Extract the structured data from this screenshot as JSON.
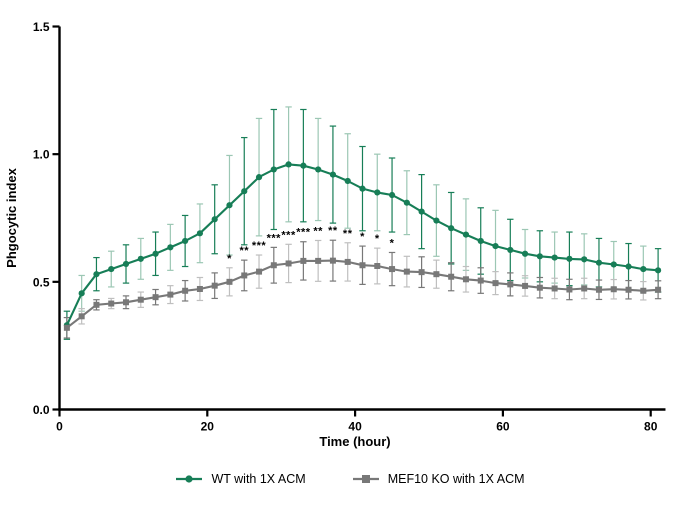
{
  "chart_data": {
    "type": "line",
    "title": "",
    "xlabel": "Time (hour)",
    "ylabel": "Phgocytic index",
    "xlim": [
      0,
      82
    ],
    "ylim": [
      0.0,
      1.5
    ],
    "xticks": [
      0,
      20,
      40,
      60,
      80
    ],
    "xtick_labels": [
      "0",
      "20",
      "40",
      "60",
      "80"
    ],
    "yticks": [
      0,
      0.5,
      1.0,
      1.5
    ],
    "ytick_labels": [
      "0.0",
      "0.5",
      "1.0",
      "1.5"
    ],
    "grid": false,
    "legend_position": "bottom",
    "error_bars": "symmetric",
    "x": [
      1,
      3,
      5,
      7,
      9,
      11,
      13,
      15,
      17,
      19,
      21,
      23,
      25,
      27,
      29,
      31,
      33,
      35,
      37,
      39,
      41,
      43,
      45,
      47,
      49,
      51,
      53,
      55,
      57,
      59,
      61,
      63,
      65,
      67,
      69,
      71,
      73,
      75,
      77,
      79,
      81
    ],
    "series": [
      {
        "name": "WT with 1X ACM",
        "marker": "circle",
        "color": "#177e57",
        "error_color_light": "#9cc7b4",
        "values": [
          0.33,
          0.455,
          0.53,
          0.55,
          0.57,
          0.59,
          0.61,
          0.635,
          0.66,
          0.69,
          0.745,
          0.8,
          0.855,
          0.91,
          0.94,
          0.96,
          0.955,
          0.94,
          0.92,
          0.895,
          0.865,
          0.85,
          0.84,
          0.81,
          0.775,
          0.74,
          0.71,
          0.685,
          0.66,
          0.64,
          0.625,
          0.61,
          0.6,
          0.595,
          0.59,
          0.588,
          0.575,
          0.568,
          0.56,
          0.55,
          0.545
        ],
        "errors": [
          0.055,
          0.07,
          0.065,
          0.07,
          0.075,
          0.08,
          0.085,
          0.09,
          0.1,
          0.115,
          0.135,
          0.195,
          0.21,
          0.23,
          0.235,
          0.225,
          0.22,
          0.2,
          0.19,
          0.185,
          0.165,
          0.15,
          0.145,
          0.125,
          0.145,
          0.14,
          0.14,
          0.14,
          0.13,
          0.14,
          0.12,
          0.095,
          0.1,
          0.1,
          0.105,
          0.1,
          0.095,
          0.09,
          0.09,
          0.09,
          0.085
        ]
      },
      {
        "name": "MEF10 KO with 1X ACM",
        "marker": "square",
        "color": "#787878",
        "error_color_light": "#bfbfbf",
        "values": [
          0.32,
          0.365,
          0.41,
          0.415,
          0.42,
          0.43,
          0.44,
          0.45,
          0.465,
          0.472,
          0.485,
          0.5,
          0.525,
          0.54,
          0.565,
          0.572,
          0.582,
          0.582,
          0.583,
          0.578,
          0.565,
          0.562,
          0.55,
          0.54,
          0.538,
          0.53,
          0.52,
          0.51,
          0.505,
          0.495,
          0.49,
          0.484,
          0.477,
          0.474,
          0.47,
          0.474,
          0.469,
          0.471,
          0.469,
          0.465,
          0.469
        ],
        "errors": [
          0.04,
          0.03,
          0.02,
          0.02,
          0.025,
          0.03,
          0.03,
          0.035,
          0.04,
          0.045,
          0.05,
          0.055,
          0.06,
          0.065,
          0.07,
          0.075,
          0.075,
          0.08,
          0.08,
          0.075,
          0.075,
          0.07,
          0.065,
          0.06,
          0.06,
          0.055,
          0.055,
          0.05,
          0.05,
          0.045,
          0.045,
          0.04,
          0.04,
          0.04,
          0.04,
          0.04,
          0.038,
          0.038,
          0.036,
          0.036,
          0.035
        ]
      }
    ],
    "significance": [
      {
        "x": 23,
        "label": "*"
      },
      {
        "x": 25,
        "label": "**"
      },
      {
        "x": 27,
        "label": "***"
      },
      {
        "x": 29,
        "label": "***"
      },
      {
        "x": 31,
        "label": "***"
      },
      {
        "x": 33,
        "label": "***"
      },
      {
        "x": 35,
        "label": "**"
      },
      {
        "x": 37,
        "label": "**"
      },
      {
        "x": 39,
        "label": "**"
      },
      {
        "x": 41,
        "label": "*"
      },
      {
        "x": 43,
        "label": "*"
      },
      {
        "x": 45,
        "label": "*"
      }
    ]
  }
}
